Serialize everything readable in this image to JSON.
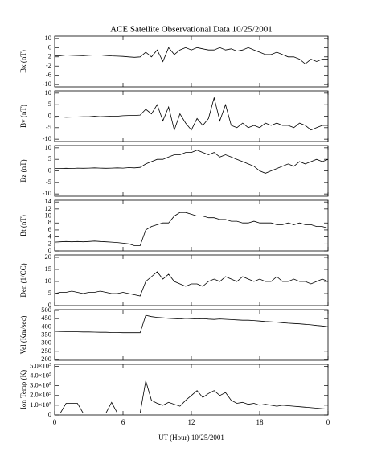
{
  "chart_data": {
    "type": "line",
    "title": "ACE Satellite Observational Data  10/25/2001",
    "xlabel": "UT (Hour)  10/25/2001",
    "xlim": [
      0,
      24
    ],
    "xticks": [
      0,
      6,
      12,
      18,
      {
        "value": 24,
        "label": "0"
      }
    ],
    "x": [
      0,
      0.5,
      1,
      1.5,
      2,
      2.5,
      3,
      3.5,
      4,
      4.5,
      5,
      5.5,
      6,
      6.5,
      7,
      7.5,
      8,
      8.5,
      9,
      9.5,
      10,
      10.5,
      11,
      11.5,
      12,
      12.5,
      13,
      13.5,
      14,
      14.5,
      15,
      15.5,
      16,
      16.5,
      17,
      17.5,
      18,
      18.5,
      19,
      19.5,
      20,
      20.5,
      21,
      21.5,
      22,
      22.5,
      23,
      23.5,
      24
    ],
    "color": "#000000",
    "panels": [
      {
        "ylabel": "Bx (nT)",
        "ylim": [
          -11,
          11
        ],
        "yticks": [
          10,
          6,
          2,
          -2,
          -6,
          -10
        ],
        "values": [
          2.5,
          2.5,
          2.8,
          2.7,
          2.6,
          2.5,
          2.7,
          2.8,
          2.8,
          2.6,
          2.4,
          2.3,
          2.2,
          2.0,
          1.8,
          2.0,
          4,
          2,
          5,
          0,
          6,
          3,
          5,
          6,
          5,
          6,
          5.5,
          5,
          5,
          6,
          5,
          5.5,
          4.5,
          5,
          6,
          5,
          4,
          3,
          3,
          4,
          3,
          2,
          2,
          1,
          -1,
          1,
          0,
          1,
          1
        ]
      },
      {
        "ylabel": "By (nT)",
        "ylim": [
          -11,
          11
        ],
        "yticks": [
          10,
          5,
          0,
          -5,
          -10
        ],
        "values": [
          -0.5,
          -0.3,
          -0.5,
          -0.4,
          -0.3,
          -0.2,
          -0.2,
          0,
          -0.2,
          -0.1,
          0,
          0,
          0.2,
          0.3,
          0.3,
          0.5,
          3,
          1,
          5,
          -2,
          4,
          -6,
          1,
          -3,
          -6,
          -1,
          -4,
          -1,
          8,
          -2,
          5,
          -4,
          -5,
          -3,
          -5,
          -4,
          -5,
          -3,
          -4,
          -3,
          -4,
          -4,
          -5,
          -3,
          -4,
          -6,
          -5,
          -4,
          -4
        ]
      },
      {
        "ylabel": "Bz (nT)",
        "ylim": [
          -11,
          11
        ],
        "yticks": [
          10,
          5,
          0,
          -5,
          -10
        ],
        "values": [
          1,
          1,
          1.1,
          1,
          1.2,
          1.1,
          1.2,
          1.3,
          1.2,
          1.1,
          1.2,
          1.3,
          1.2,
          1.4,
          1.3,
          1.5,
          3,
          4,
          5,
          5,
          6,
          7,
          7,
          8,
          8,
          9,
          8,
          7,
          8,
          6,
          7,
          6,
          5,
          4,
          3,
          2,
          0,
          -1,
          0,
          1,
          2,
          3,
          2,
          4,
          3,
          4,
          5,
          4,
          5
        ]
      },
      {
        "ylabel": "Bt (nT)",
        "ylim": [
          0,
          14.5
        ],
        "yticks": [
          14,
          12,
          10,
          8,
          6,
          4,
          2,
          0
        ],
        "values": [
          2.5,
          2.6,
          2.7,
          2.6,
          2.7,
          2.6,
          2.7,
          2.8,
          2.7,
          2.6,
          2.5,
          2.4,
          2.2,
          2.0,
          1.5,
          1.5,
          6,
          7,
          7.5,
          8,
          8,
          10,
          11,
          11,
          10.5,
          10,
          10,
          9.5,
          9.5,
          9,
          9,
          8.5,
          8.5,
          8,
          8,
          8.5,
          8,
          8,
          8,
          7.5,
          7.5,
          8,
          7.5,
          8,
          7.5,
          7.5,
          7,
          7,
          6.5
        ]
      },
      {
        "ylabel": "Den (1/CC)",
        "ylim": [
          0,
          21
        ],
        "yticks": [
          20,
          15,
          10,
          5,
          0
        ],
        "values": [
          5,
          5.5,
          5.5,
          6,
          5.5,
          5,
          5.5,
          5.5,
          6,
          5.5,
          5,
          5,
          5.5,
          5,
          4.5,
          4,
          10,
          12,
          14,
          11,
          13,
          10,
          9,
          8,
          9,
          9,
          8,
          10,
          11,
          10,
          12,
          11,
          10,
          12,
          11,
          10,
          11,
          10,
          10,
          12,
          10,
          10,
          11,
          10,
          10,
          9,
          10,
          11,
          10
        ]
      },
      {
        "ylabel": "Vel (Km/sec)",
        "ylim": [
          195,
          505
        ],
        "yticks": [
          500,
          450,
          400,
          350,
          300,
          250,
          200
        ],
        "values": [
          372,
          371,
          370,
          370,
          369,
          368,
          368,
          367,
          366,
          366,
          365,
          365,
          364,
          364,
          364,
          364,
          470,
          462,
          458,
          455,
          452,
          450,
          448,
          452,
          450,
          448,
          450,
          447,
          445,
          448,
          446,
          444,
          442,
          440,
          440,
          438,
          435,
          432,
          430,
          428,
          425,
          422,
          420,
          418,
          415,
          412,
          408,
          405,
          400
        ]
      },
      {
        "ylabel": "Ion Temp (K)",
        "ylim": [
          0,
          520000
        ],
        "yticks": [
          {
            "value": 500000,
            "label": "5.0×10⁵"
          },
          {
            "value": 400000,
            "label": "4.0×10⁵"
          },
          {
            "value": 300000,
            "label": "3.0×10⁵"
          },
          {
            "value": 200000,
            "label": "2.0×10⁵"
          },
          {
            "value": 100000,
            "label": "1.0×10⁵"
          },
          0
        ],
        "values": [
          20000,
          20000,
          120000,
          120000,
          120000,
          20000,
          20000,
          20000,
          20000,
          20000,
          130000,
          20000,
          20000,
          20000,
          20000,
          20000,
          350000,
          150000,
          120000,
          100000,
          130000,
          110000,
          90000,
          150000,
          200000,
          250000,
          180000,
          220000,
          250000,
          200000,
          230000,
          150000,
          120000,
          130000,
          110000,
          120000,
          100000,
          110000,
          100000,
          90000,
          100000,
          95000,
          90000,
          85000,
          80000,
          75000,
          70000,
          65000,
          60000
        ]
      }
    ]
  }
}
